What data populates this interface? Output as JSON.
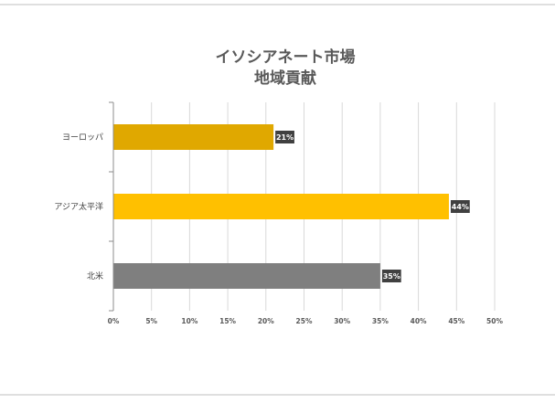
{
  "chart_data": {
    "type": "bar",
    "orientation": "horizontal",
    "title": [
      "イソシアネート市場",
      "地域貢献"
    ],
    "xlabel": "",
    "ylabel": "",
    "categories": [
      "ヨーロッパ",
      "アジア太平洋",
      "北米"
    ],
    "values": [
      21,
      44,
      35
    ],
    "unit": "%",
    "data_labels": [
      "21%",
      "44%",
      "35%"
    ],
    "colors": [
      "#E0A800",
      "#FFC000",
      "#7F7F7F"
    ],
    "xlim": [
      0,
      50
    ],
    "xticks": [
      0,
      5,
      10,
      15,
      20,
      25,
      30,
      35,
      40,
      45,
      50
    ],
    "xtick_labels": [
      "0%",
      "5%",
      "10%",
      "15%",
      "20%",
      "25%",
      "30%",
      "35%",
      "40%",
      "45%",
      "50%"
    ],
    "grid": true,
    "legend": "none"
  },
  "colors": {
    "title": "#595959",
    "gridline": "#D9D9D9",
    "axis": "#8C8C8C",
    "data_label_background": "#404040",
    "frame_line": "#BFBFBF"
  }
}
